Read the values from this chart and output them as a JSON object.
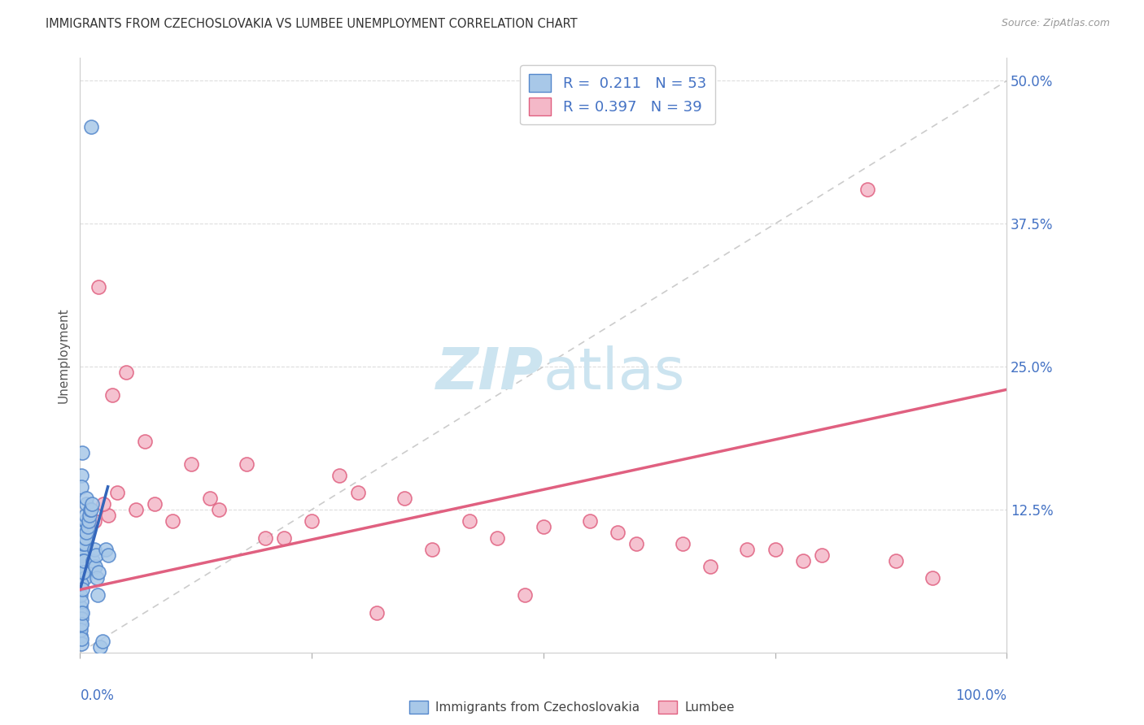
{
  "title": "IMMIGRANTS FROM CZECHOSLOVAKIA VS LUMBEE UNEMPLOYMENT CORRELATION CHART",
  "source": "Source: ZipAtlas.com",
  "ylabel": "Unemployment",
  "legend_labels": [
    "Immigrants from Czechoslovakia",
    "Lumbee"
  ],
  "blue_R": 0.211,
  "blue_N": 53,
  "pink_R": 0.397,
  "pink_N": 39,
  "blue_face_color": "#a8c8e8",
  "blue_edge_color": "#5588cc",
  "pink_face_color": "#f4b8c8",
  "pink_edge_color": "#e06080",
  "blue_line_color": "#3366bb",
  "pink_line_color": "#e06080",
  "diag_color": "#cccccc",
  "watermark_color": "#cce4f0",
  "background_color": "#ffffff",
  "grid_color": "#dddddd",
  "tick_color": "#4472C4",
  "ylim": [
    0,
    52
  ],
  "xlim": [
    0,
    100
  ],
  "ytick_vals": [
    0,
    12.5,
    25.0,
    37.5,
    50.0
  ],
  "ytick_labels": [
    "",
    "12.5%",
    "25.0%",
    "37.5%",
    "50.0%"
  ],
  "xtick_positions": [
    0,
    25,
    50,
    75,
    100
  ],
  "blue_x": [
    1.2,
    0.1,
    0.1,
    0.15,
    0.2,
    0.05,
    0.08,
    0.12,
    0.18,
    0.25,
    0.3,
    0.35,
    0.4,
    0.45,
    0.5,
    0.55,
    0.6,
    0.65,
    0.7,
    0.05,
    0.1,
    0.15,
    0.08,
    0.12,
    0.2,
    0.3,
    0.4,
    0.5,
    0.6,
    0.7,
    0.8,
    0.9,
    1.0,
    1.1,
    1.2,
    1.3,
    1.4,
    1.5,
    1.6,
    1.7,
    1.8,
    1.9,
    2.0,
    2.2,
    2.4,
    0.05,
    0.08,
    0.1,
    0.12,
    0.15,
    0.2,
    2.8,
    3.0
  ],
  "blue_y": [
    46.0,
    7.5,
    15.5,
    14.5,
    17.5,
    4.0,
    5.0,
    9.0,
    10.5,
    8.5,
    8.0,
    9.5,
    7.0,
    6.5,
    10.0,
    11.5,
    12.0,
    13.0,
    13.5,
    3.5,
    4.5,
    6.0,
    2.5,
    3.0,
    5.5,
    7.0,
    8.0,
    9.5,
    10.0,
    10.5,
    11.0,
    11.5,
    12.0,
    12.5,
    12.5,
    13.0,
    8.0,
    9.0,
    7.5,
    8.5,
    6.5,
    5.0,
    7.0,
    0.5,
    1.0,
    1.5,
    2.0,
    0.8,
    1.2,
    2.5,
    3.5,
    9.0,
    8.5
  ],
  "pink_x": [
    2.0,
    3.5,
    5.0,
    7.0,
    10.0,
    14.0,
    18.0,
    22.0,
    28.0,
    35.0,
    42.0,
    50.0,
    58.0,
    65.0,
    72.0,
    80.0,
    88.0,
    3.0,
    6.0,
    12.0,
    20.0,
    30.0,
    45.0,
    60.0,
    75.0,
    1.5,
    2.5,
    4.0,
    8.0,
    15.0,
    25.0,
    38.0,
    55.0,
    68.0,
    78.0,
    85.0,
    92.0,
    48.0,
    32.0
  ],
  "pink_y": [
    32.0,
    22.5,
    24.5,
    18.5,
    11.5,
    13.5,
    16.5,
    10.0,
    15.5,
    13.5,
    11.5,
    11.0,
    10.5,
    9.5,
    9.0,
    8.5,
    8.0,
    12.0,
    12.5,
    16.5,
    10.0,
    14.0,
    10.0,
    9.5,
    9.0,
    11.5,
    13.0,
    14.0,
    13.0,
    12.5,
    11.5,
    9.0,
    11.5,
    7.5,
    8.0,
    40.5,
    6.5,
    5.0,
    3.5
  ],
  "blue_line_x0": 0.0,
  "blue_line_x1": 3.0,
  "blue_line_y0": 5.5,
  "blue_line_y1": 14.5,
  "pink_line_x0": 0.0,
  "pink_line_x1": 100.0,
  "pink_line_y0": 5.5,
  "pink_line_y1": 23.0
}
